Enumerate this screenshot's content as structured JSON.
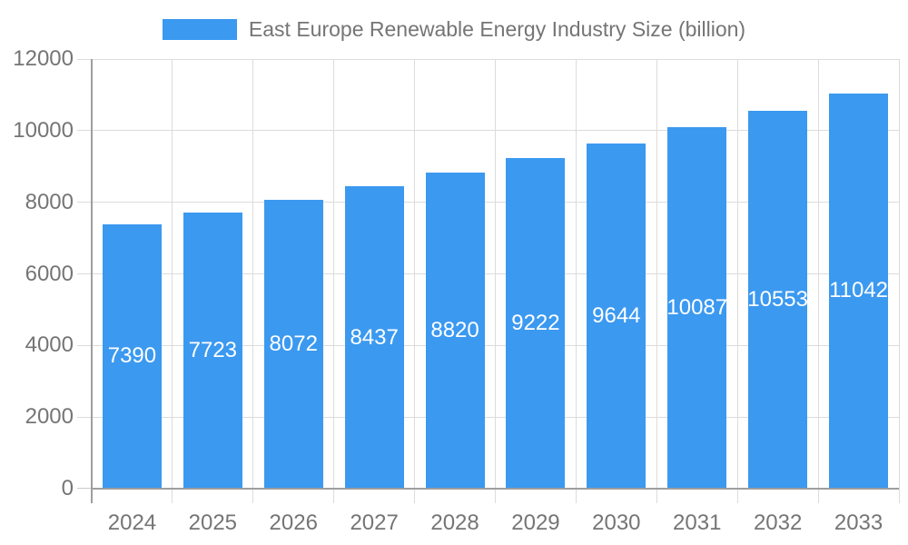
{
  "page": {
    "background_color": "#ffffff"
  },
  "legend": {
    "label": "East Europe Renewable Energy Industry Size (billion)",
    "swatch_color": "#3b99f0"
  },
  "chart_data": {
    "type": "bar",
    "title": "East Europe Renewable Energy Industry Size (billion)",
    "categories": [
      "2024",
      "2025",
      "2026",
      "2027",
      "2028",
      "2029",
      "2030",
      "2031",
      "2032",
      "2033"
    ],
    "series": [
      {
        "name": "East Europe Renewable Energy Industry Size (billion)",
        "values": [
          7390,
          7723,
          8072,
          8437,
          8820,
          9222,
          9644,
          10087,
          10553,
          11042
        ]
      }
    ],
    "values": [
      7390,
      7723,
      8072,
      8437,
      8820,
      9222,
      9644,
      10087,
      10553,
      11042
    ],
    "data_labels_shown": true,
    "xlabel": "",
    "ylabel": "",
    "ylim": [
      0,
      12000
    ],
    "yticks": [
      0,
      2000,
      4000,
      6000,
      8000,
      10000,
      12000
    ],
    "grid": true,
    "legend_position": "top",
    "bar_color": "#3b99f0",
    "bar_label_color": "#ffffff",
    "axis_text_color": "#757575",
    "axis_line_color": "#9e9e9e",
    "grid_color": "#dcdcdc",
    "tick_color": "#c9c9c9"
  }
}
